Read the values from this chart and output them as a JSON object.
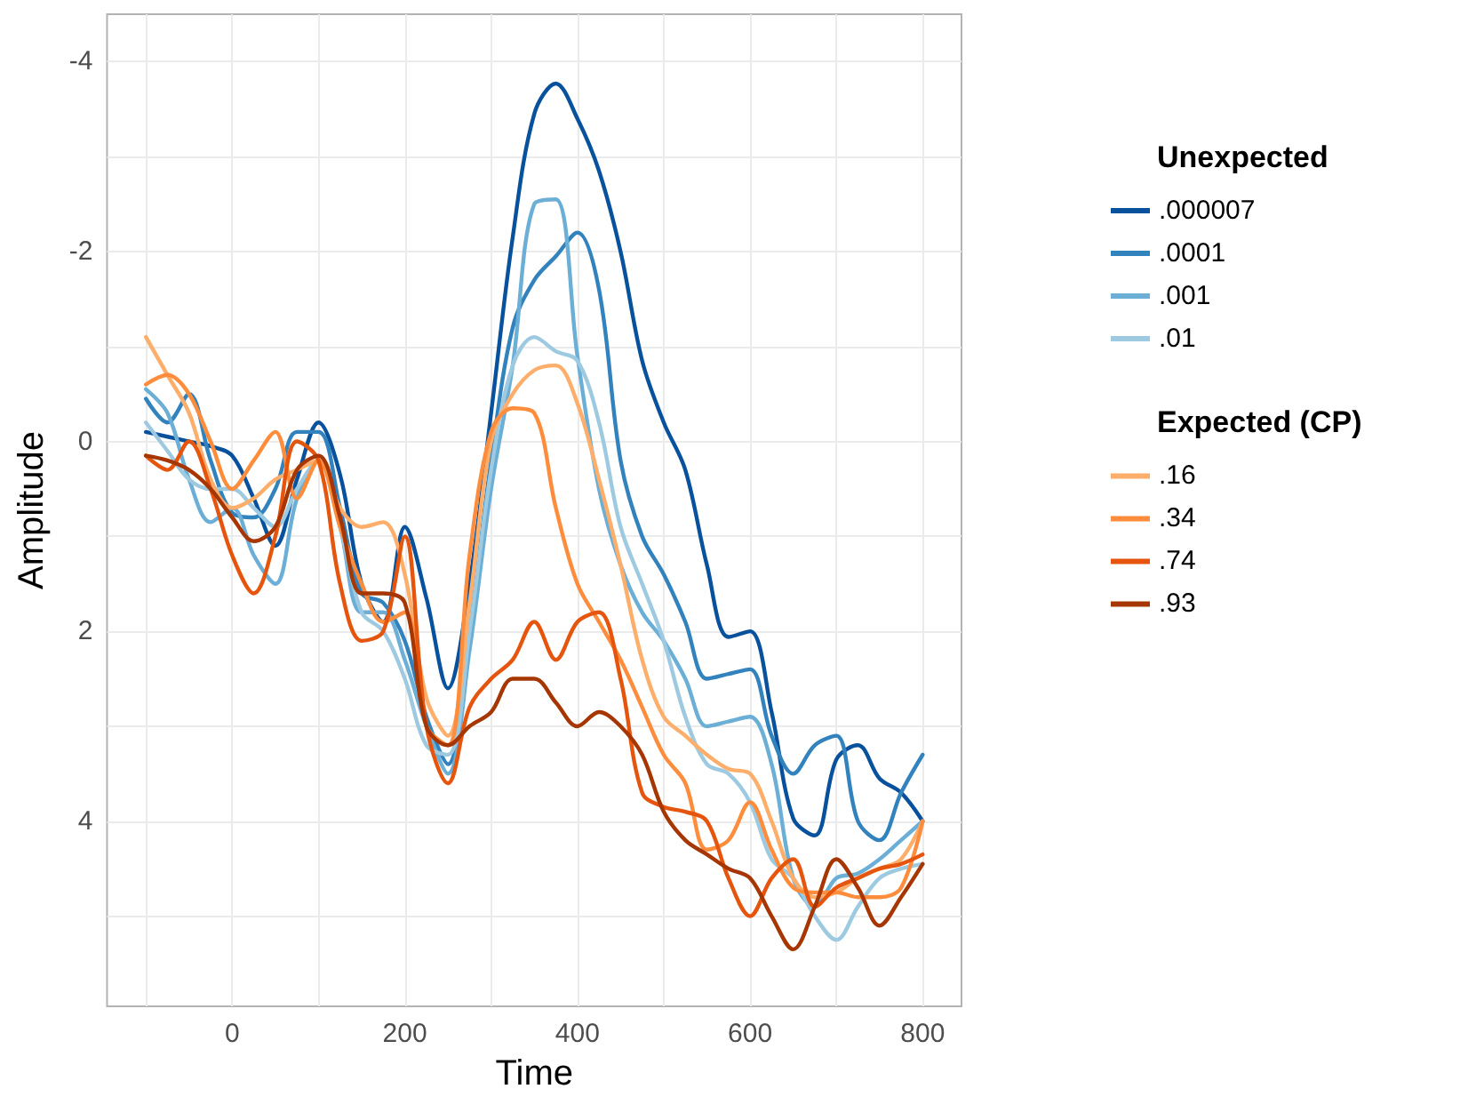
{
  "chart_data": {
    "type": "line",
    "xlabel": "Time",
    "ylabel": "Amplitude",
    "legend_title": [
      "Unexpected",
      "Expected (CP)"
    ],
    "legend": "right",
    "grid": true,
    "line_style": "solid",
    "marker": "none",
    "xlim": [
      -145,
      845
    ],
    "xticks": [
      {
        "value": -100,
        "label": null
      },
      0,
      {
        "value": 100,
        "label": null
      },
      200,
      {
        "value": 300,
        "label": null
      },
      400,
      {
        "value": 500,
        "label": null
      },
      600,
      {
        "value": 700,
        "label": null
      },
      800
    ],
    "ylim": [
      5.95,
      -4.5
    ],
    "yticks": [
      -4,
      {
        "value": -3,
        "label": null
      },
      -2,
      {
        "value": -1,
        "label": null
      },
      0,
      {
        "value": 1,
        "label": null
      },
      2,
      {
        "value": 3,
        "label": null
      },
      4,
      {
        "value": 5,
        "label": null
      }
    ],
    "x": [
      -100,
      -75,
      -50,
      -25,
      0,
      25,
      50,
      75,
      100,
      125,
      150,
      175,
      200,
      225,
      250,
      275,
      300,
      325,
      350,
      375,
      400,
      425,
      450,
      475,
      500,
      525,
      550,
      575,
      600,
      625,
      650,
      675,
      700,
      725,
      750,
      775,
      800
    ],
    "series": [
      {
        "name": ".000007",
        "color": "#08519c",
        "values": [
          -0.1,
          -0.05,
          0.0,
          0.05,
          0.15,
          0.6,
          1.1,
          0.4,
          -0.2,
          0.35,
          1.5,
          1.9,
          0.9,
          1.65,
          2.6,
          1.5,
          -0.3,
          -2.15,
          -3.45,
          -3.77,
          -3.4,
          -2.85,
          -2.0,
          -0.85,
          -0.2,
          0.3,
          1.3,
          2.06,
          2.0,
          2.85,
          3.97,
          4.15,
          3.35,
          3.2,
          3.55,
          3.7,
          4.0
        ]
      },
      {
        "name": ".0001",
        "color": "#3182bd",
        "values": [
          -0.45,
          -0.2,
          -0.5,
          0.2,
          0.75,
          0.8,
          0.5,
          -0.1,
          -0.1,
          0.7,
          1.6,
          1.7,
          2.1,
          2.9,
          3.4,
          2.0,
          0.2,
          -1.2,
          -1.7,
          -1.95,
          -2.2,
          -1.6,
          0.2,
          1.0,
          1.4,
          1.9,
          2.5,
          2.45,
          2.4,
          3.1,
          3.5,
          3.2,
          3.1,
          4.0,
          4.2,
          3.7,
          3.3
        ]
      },
      {
        "name": ".001",
        "color": "#6baed6",
        "values": [
          -0.55,
          -0.3,
          0.4,
          0.85,
          0.7,
          1.2,
          1.5,
          0.6,
          0.2,
          0.9,
          1.8,
          1.8,
          2.3,
          3.0,
          3.5,
          2.2,
          0.5,
          -0.8,
          -2.5,
          -2.55,
          -0.9,
          0.5,
          1.3,
          1.8,
          2.1,
          2.5,
          3.0,
          2.95,
          2.9,
          3.4,
          4.6,
          4.9,
          4.6,
          4.55,
          4.4,
          4.2,
          4.0
        ]
      },
      {
        "name": ".01",
        "color": "#9ecae1",
        "values": [
          -0.2,
          0.1,
          0.4,
          0.5,
          0.5,
          0.7,
          0.9,
          0.5,
          0.2,
          0.9,
          1.8,
          2.0,
          2.5,
          3.2,
          3.3,
          2.0,
          0.3,
          -0.8,
          -1.1,
          -0.95,
          -0.85,
          -0.2,
          0.9,
          1.5,
          2.1,
          2.9,
          3.4,
          3.5,
          3.8,
          4.4,
          4.6,
          5.0,
          5.25,
          4.9,
          4.6,
          4.5,
          4.45
        ]
      },
      {
        "name": ".16",
        "color": "#fdae6b",
        "values": [
          -1.1,
          -0.7,
          -0.3,
          0.4,
          0.7,
          0.6,
          0.4,
          0.3,
          0.2,
          0.7,
          0.9,
          0.85,
          1.4,
          2.7,
          3.1,
          1.7,
          0.0,
          -0.5,
          -0.75,
          -0.8,
          -0.4,
          0.4,
          1.3,
          2.3,
          2.9,
          3.1,
          3.3,
          3.45,
          3.5,
          4.0,
          4.6,
          4.8,
          4.75,
          4.6,
          4.5,
          4.4,
          4.0
        ]
      },
      {
        "name": ".34",
        "color": "#fd8d3c",
        "values": [
          -0.6,
          -0.7,
          -0.5,
          0.0,
          0.5,
          0.2,
          -0.1,
          0.6,
          0.2,
          0.9,
          1.5,
          1.9,
          1.8,
          3.0,
          3.2,
          1.2,
          -0.1,
          -0.35,
          -0.3,
          0.7,
          1.5,
          1.9,
          2.3,
          2.8,
          3.3,
          3.6,
          4.3,
          4.2,
          3.8,
          4.3,
          4.7,
          4.75,
          4.75,
          4.8,
          4.8,
          4.7,
          4.0
        ]
      },
      {
        "name": ".74",
        "color": "#e6550d",
        "values": [
          0.15,
          0.3,
          0.0,
          0.5,
          1.2,
          1.6,
          1.0,
          0.0,
          0.2,
          1.5,
          2.1,
          2.0,
          1.0,
          3.0,
          3.6,
          2.8,
          2.5,
          2.3,
          1.9,
          2.3,
          1.9,
          1.8,
          2.5,
          3.7,
          3.85,
          3.9,
          4.0,
          4.6,
          5.0,
          4.6,
          4.4,
          4.9,
          4.7,
          4.6,
          4.5,
          4.45,
          4.35
        ]
      },
      {
        "name": ".93",
        "color": "#a63603",
        "values": [
          0.15,
          0.2,
          0.3,
          0.5,
          0.8,
          1.05,
          0.9,
          0.3,
          0.15,
          0.8,
          1.6,
          1.6,
          1.7,
          3.0,
          3.2,
          3.0,
          2.85,
          2.5,
          2.5,
          2.75,
          3.0,
          2.85,
          3.0,
          3.3,
          3.9,
          4.2,
          4.35,
          4.5,
          4.6,
          5.0,
          5.35,
          4.9,
          4.4,
          4.7,
          5.1,
          4.8,
          4.45
        ]
      }
    ]
  }
}
